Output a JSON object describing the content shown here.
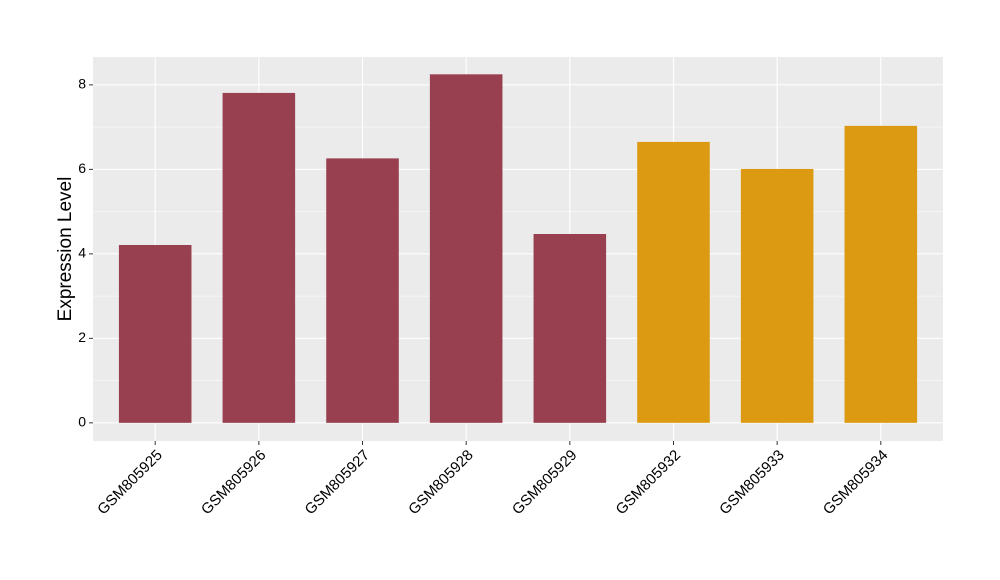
{
  "chart_data": {
    "type": "bar",
    "y_label": "Expression Level",
    "categories": [
      "GSM805925",
      "GSM805926",
      "GSM805927",
      "GSM805928",
      "GSM805929",
      "GSM805932",
      "GSM805933",
      "GSM805934"
    ],
    "values": [
      4.21,
      7.81,
      6.26,
      8.25,
      4.47,
      6.65,
      6.01,
      7.03
    ],
    "colors": [
      "#98404f",
      "#98404f",
      "#98404f",
      "#98404f",
      "#98404f",
      "#dc9a13",
      "#dc9a13",
      "#dc9a13"
    ],
    "ylim": [
      -0.43,
      8.66
    ],
    "yticks": [
      0,
      2,
      4,
      6,
      8
    ],
    "grid": true,
    "minor_grid": true
  }
}
